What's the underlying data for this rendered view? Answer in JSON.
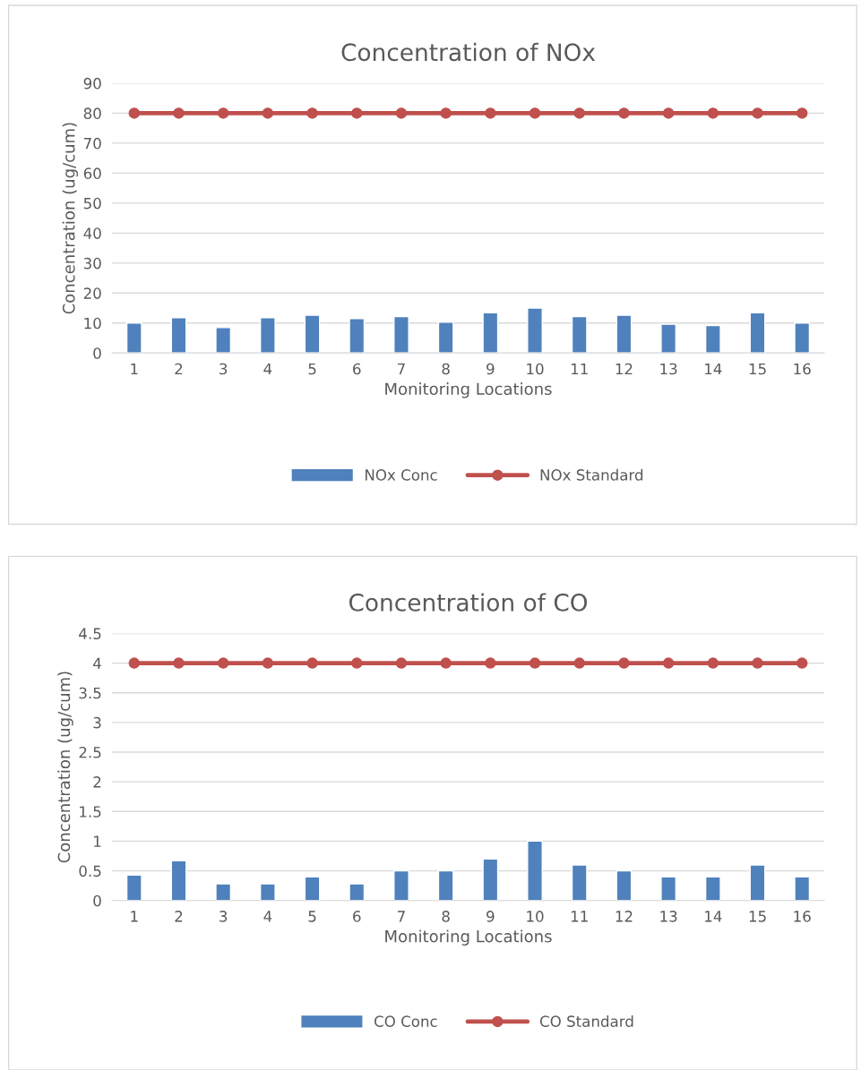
{
  "chart_data": [
    {
      "type": "bar",
      "title": "Concentration of NOx",
      "xlabel": "Monitoring Locations",
      "ylabel": "Concentration (ug/cum)",
      "categories": [
        "1",
        "2",
        "3",
        "4",
        "5",
        "6",
        "7",
        "8",
        "9",
        "10",
        "11",
        "12",
        "13",
        "14",
        "15",
        "16"
      ],
      "series": [
        {
          "name": "NOx Conc",
          "color": "#4f81bd",
          "values": [
            10,
            11.8,
            8.5,
            11.8,
            12.6,
            11.5,
            12.2,
            10.3,
            13.4,
            15,
            12.2,
            12.6,
            9.6,
            9.2,
            13.4,
            10
          ]
        },
        {
          "name": "NOx Standard",
          "type": "line",
          "color": "#c0504d",
          "marker": "circle",
          "values": [
            80,
            80,
            80,
            80,
            80,
            80,
            80,
            80,
            80,
            80,
            80,
            80,
            80,
            80,
            80,
            80
          ]
        }
      ],
      "ylim": [
        0,
        90
      ],
      "yticks": [
        0,
        10,
        20,
        30,
        40,
        50,
        60,
        70,
        80,
        90
      ],
      "grid": "y",
      "legend": "bottom"
    },
    {
      "type": "bar",
      "title": "Concentration of CO",
      "xlabel": "Monitoring Locations",
      "ylabel": "Concentration (ug/cum)",
      "categories": [
        "1",
        "2",
        "3",
        "4",
        "5",
        "6",
        "7",
        "8",
        "9",
        "10",
        "11",
        "12",
        "13",
        "14",
        "15",
        "16"
      ],
      "series": [
        {
          "name": "CO Conc",
          "color": "#4f81bd",
          "values": [
            0.43,
            0.67,
            0.28,
            0.28,
            0.4,
            0.28,
            0.5,
            0.5,
            0.7,
            1,
            0.6,
            0.5,
            0.4,
            0.4,
            0.6,
            0.4
          ]
        },
        {
          "name": "CO Standard",
          "type": "line",
          "color": "#c0504d",
          "marker": "circle",
          "values": [
            4,
            4,
            4,
            4,
            4,
            4,
            4,
            4,
            4,
            4,
            4,
            4,
            4,
            4,
            4,
            4
          ]
        }
      ],
      "ylim": [
        0,
        4.5
      ],
      "yticks": [
        0,
        0.5,
        1,
        1.5,
        2,
        2.5,
        3,
        3.5,
        4,
        4.5
      ],
      "grid": "y",
      "legend": "bottom"
    }
  ]
}
